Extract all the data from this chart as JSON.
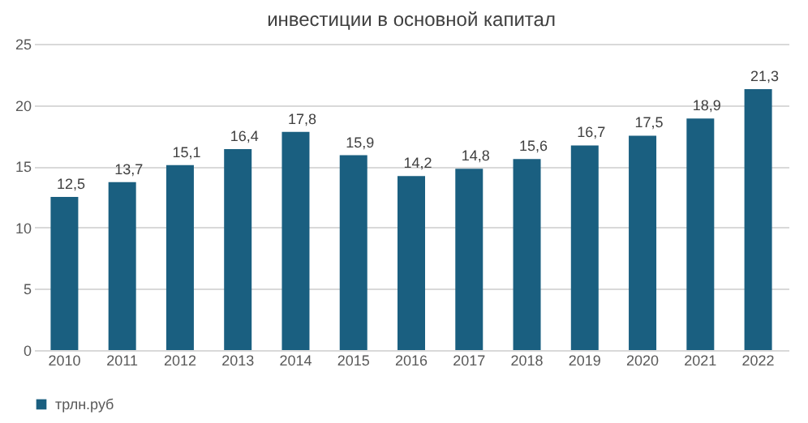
{
  "chart_data": {
    "type": "bar",
    "title": "инвестиции в основной капитал",
    "categories": [
      "2010",
      "2011",
      "2012",
      "2013",
      "2014",
      "2015",
      "2016",
      "2017",
      "2018",
      "2019",
      "2020",
      "2021",
      "2022"
    ],
    "series": [
      {
        "name": "трлн.руб",
        "color": "#1a5f80",
        "values": [
          12.5,
          13.7,
          15.1,
          16.4,
          17.8,
          15.9,
          14.2,
          14.8,
          15.6,
          16.7,
          17.5,
          18.9,
          21.3
        ],
        "value_labels": [
          "12,5",
          "13,7",
          "15,1",
          "16,4",
          "17,8",
          "15,9",
          "14,2",
          "14,8",
          "15,6",
          "16,7",
          "17,5",
          "18,9",
          "21,3"
        ]
      }
    ],
    "ylim": [
      0,
      25
    ],
    "yticks": [
      0,
      5,
      10,
      15,
      20,
      25
    ],
    "grid": "y",
    "legend": "bottom"
  }
}
